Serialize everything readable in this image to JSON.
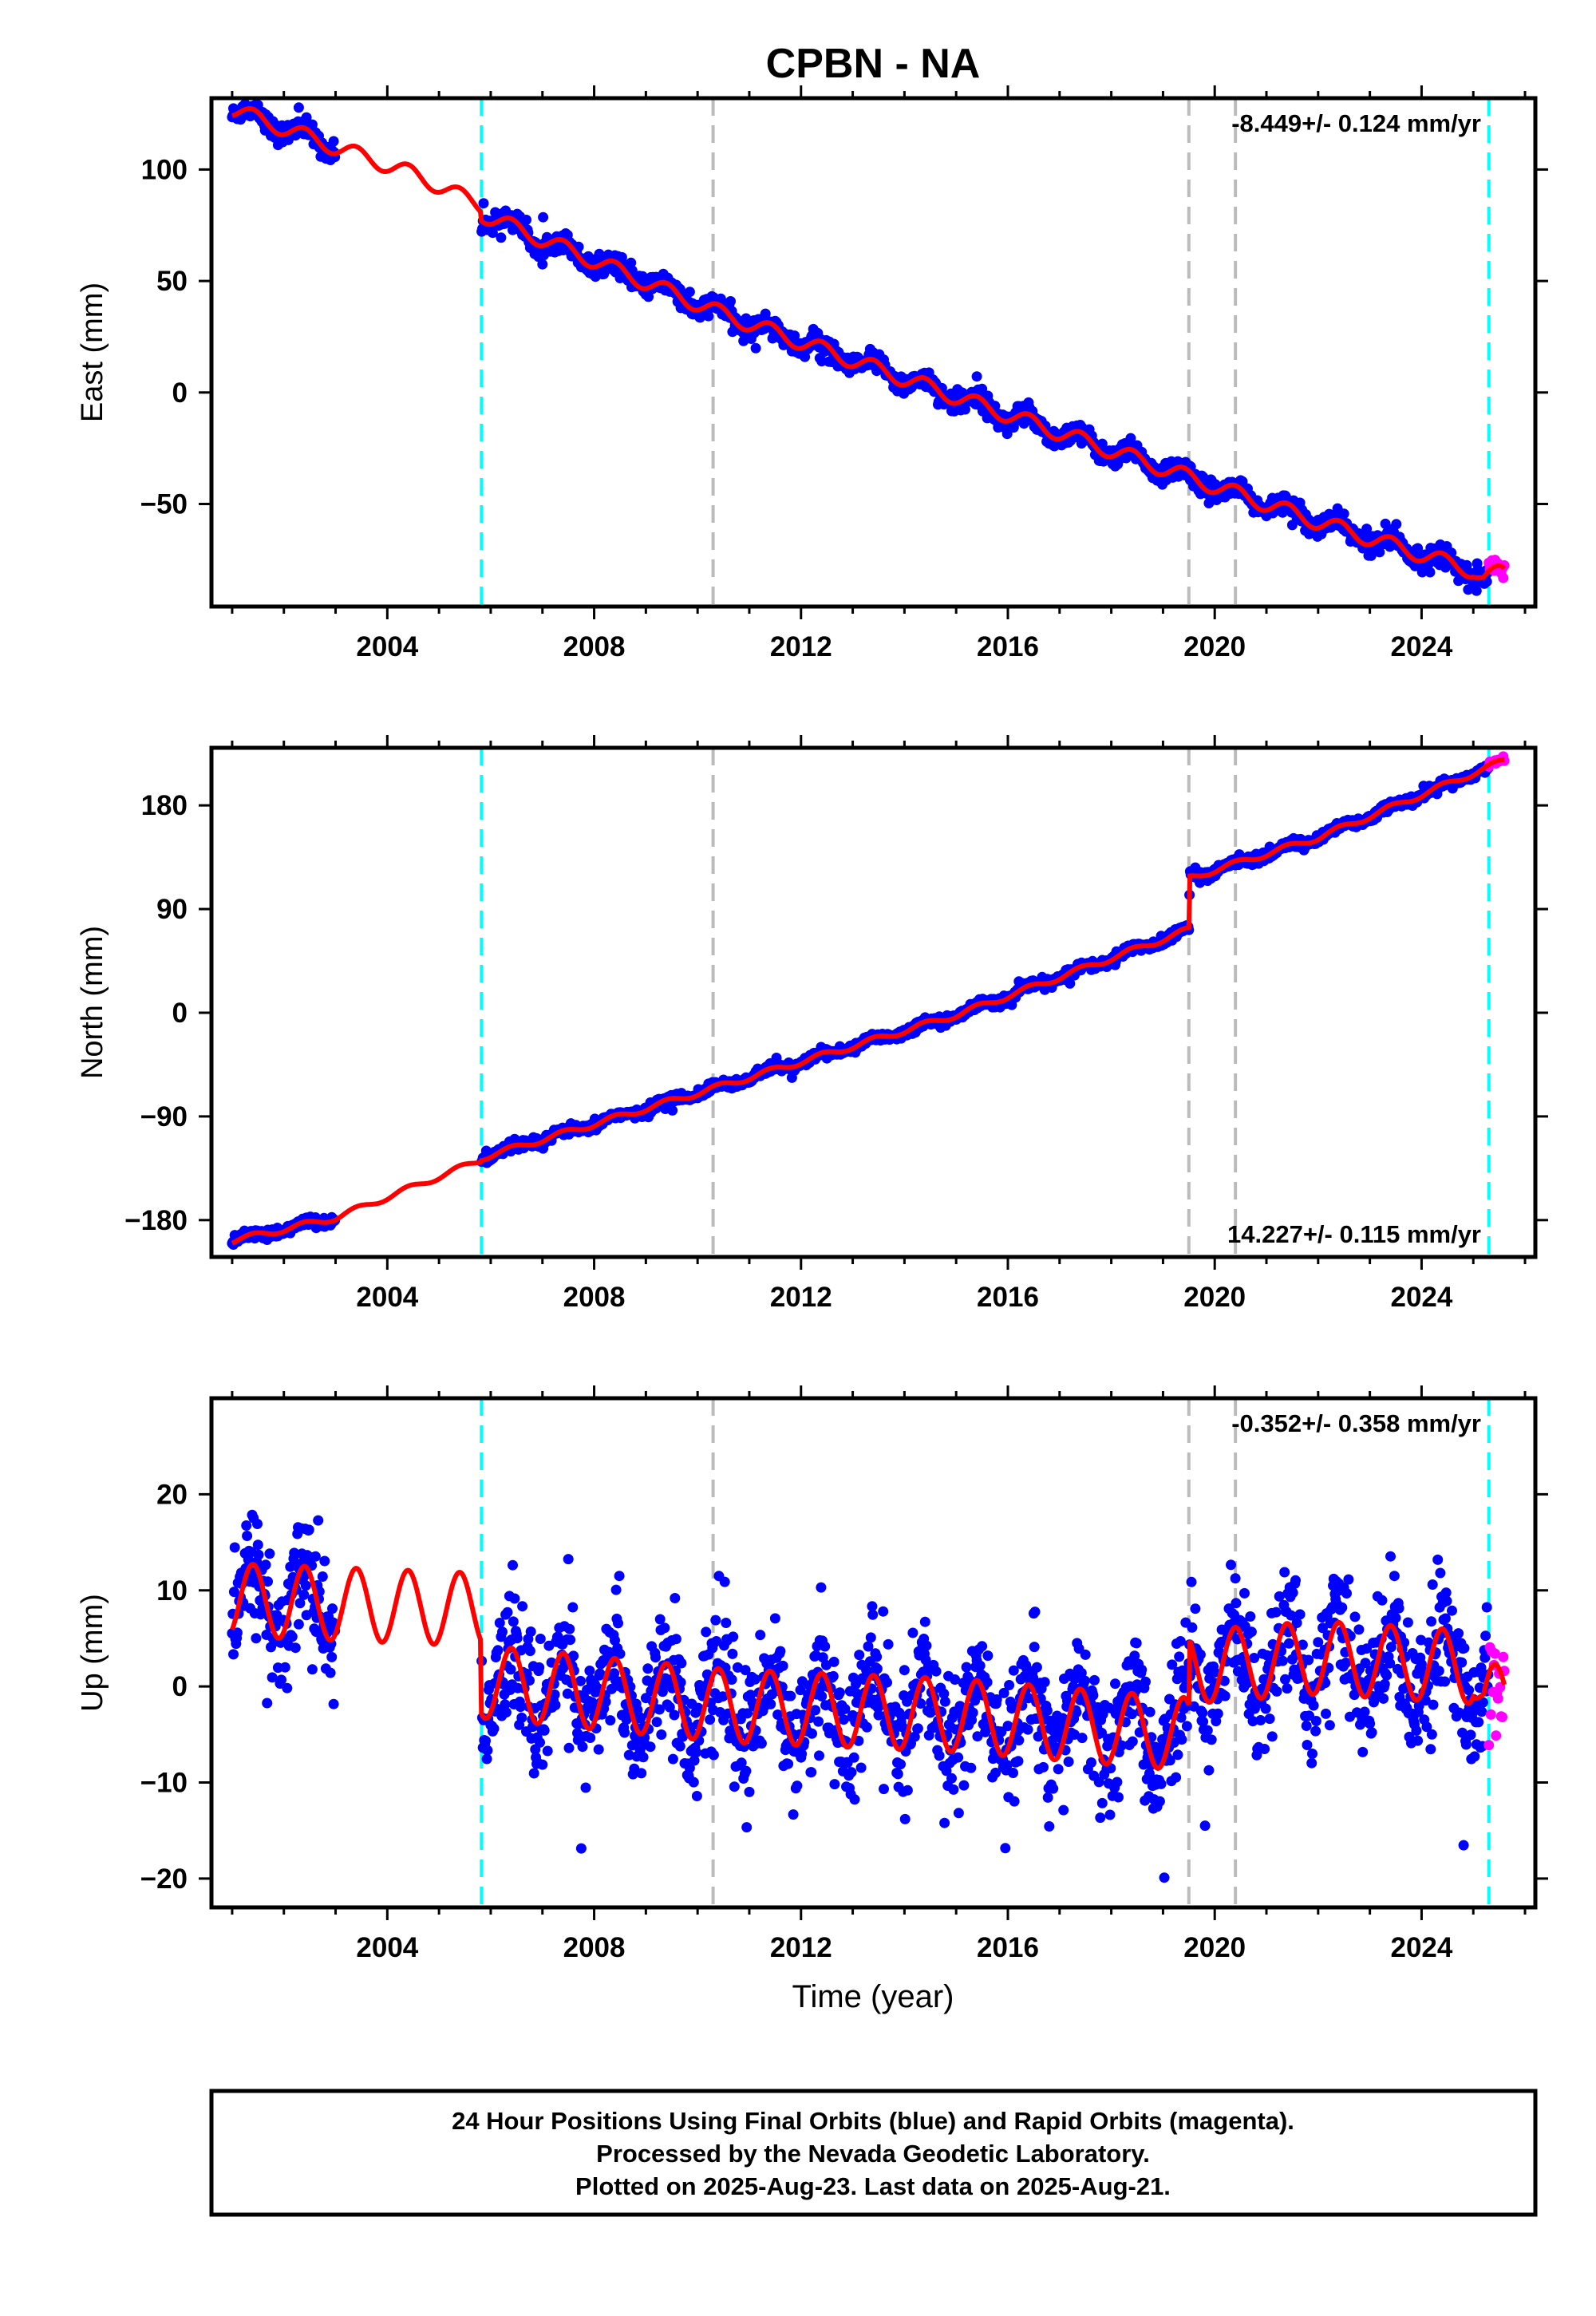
{
  "figure": {
    "title": "CPBN - NA",
    "xlabel": "Time (year)",
    "footer": [
      "24 Hour Positions Using Final Orbits (blue) and Rapid Orbits (magenta).",
      "Processed by the Nevada Geodetic Laboratory.",
      "Plotted on 2025-Aug-23. Last data on 2025-Aug-21."
    ]
  },
  "chart_data": [
    {
      "type": "scatter",
      "component": "east",
      "ylabel": "East (mm)",
      "rate_text": "-8.449+/- 0.124 mm/yr",
      "rate_position": "top-right",
      "xlim": [
        2000.6,
        2026.2
      ],
      "ylim": [
        -96,
        132
      ],
      "xticks": [
        2004,
        2008,
        2012,
        2016,
        2020,
        2024
      ],
      "yticks": [
        100,
        50,
        0,
        -50
      ],
      "ytick_labels": [
        "100",
        "50",
        "0",
        "−50"
      ],
      "model_knots": [
        [
          2001.0,
          127
        ],
        [
          2003.0,
          110
        ],
        [
          2004.5,
          98
        ],
        [
          2005.8,
          84
        ],
        [
          2005.82,
          80
        ],
        [
          2010.5,
          35
        ],
        [
          2015.0,
          -2
        ],
        [
          2019.5,
          -38
        ],
        [
          2022.0,
          -58
        ],
        [
          2025.0,
          -80
        ],
        [
          2025.2,
          -84
        ],
        [
          2025.55,
          -80
        ]
      ],
      "seasonal_amplitude": 3.5,
      "scatter_noise": 2.2,
      "data_gap": [
        2003.0,
        2005.82
      ],
      "step_epochs": [
        {
          "x": 2005.82,
          "dy": -5
        }
      ],
      "series": [
        {
          "name": "Final Orbits (blue)",
          "color": "#0000ff",
          "range": [
            2001.0,
            2025.3
          ]
        },
        {
          "name": "Rapid Orbits (magenta)",
          "color": "#ff00ff",
          "range": [
            2025.3,
            2025.6
          ]
        }
      ],
      "model_color": "#ff0000"
    },
    {
      "type": "scatter",
      "component": "north",
      "ylabel": "North (mm)",
      "rate_text": "14.227+/- 0.115 mm/yr",
      "rate_position": "bottom-right",
      "xlim": [
        2000.6,
        2026.2
      ],
      "ylim": [
        -212,
        230
      ],
      "xticks": [
        2004,
        2008,
        2012,
        2016,
        2020,
        2024
      ],
      "yticks": [
        180,
        90,
        0,
        -90,
        -180
      ],
      "ytick_labels": [
        "180",
        "90",
        "0",
        "−90",
        "−180"
      ],
      "model_knots": [
        [
          2001.0,
          -198
        ],
        [
          2003.0,
          -178
        ],
        [
          2005.8,
          -128
        ],
        [
          2005.82,
          -126
        ],
        [
          2010.5,
          -63
        ],
        [
          2015.0,
          -2
        ],
        [
          2019.5,
          72
        ],
        [
          2019.52,
          117
        ],
        [
          2022.0,
          152
        ],
        [
          2025.6,
          219
        ]
      ],
      "seasonal_amplitude": 2.5,
      "scatter_noise": 2.0,
      "data_gap": [
        2003.0,
        2005.82
      ],
      "step_epochs": [
        {
          "x": 2019.5,
          "dy": 45
        }
      ],
      "series": [
        {
          "name": "Final Orbits (blue)",
          "color": "#0000ff",
          "range": [
            2001.0,
            2025.3
          ]
        },
        {
          "name": "Rapid Orbits (magenta)",
          "color": "#ff00ff",
          "range": [
            2025.3,
            2025.6
          ]
        }
      ],
      "model_color": "#ff0000"
    },
    {
      "type": "scatter",
      "component": "up",
      "ylabel": "Up (mm)",
      "rate_text": "-0.352+/- 0.358 mm/yr",
      "rate_position": "top-right",
      "xlim": [
        2000.6,
        2026.2
      ],
      "ylim": [
        -23,
        30
      ],
      "xticks": [
        2004,
        2008,
        2012,
        2016,
        2020,
        2024
      ],
      "yticks": [
        20,
        10,
        0,
        -10,
        -20
      ],
      "ytick_labels": [
        "20",
        "10",
        "0",
        "−10",
        "−20"
      ],
      "model_knots": [
        [
          2001.0,
          9
        ],
        [
          2005.8,
          8
        ],
        [
          2005.82,
          0.5
        ],
        [
          2010.5,
          -2
        ],
        [
          2015.0,
          -3
        ],
        [
          2019.5,
          -5
        ],
        [
          2019.52,
          2
        ],
        [
          2022.0,
          3
        ],
        [
          2025.0,
          2
        ],
        [
          2025.2,
          -2
        ],
        [
          2025.6,
          -1
        ]
      ],
      "seasonal_amplitude": 3.8,
      "scatter_noise": 3.2,
      "data_gap": [
        2003.0,
        2005.82
      ],
      "step_epochs": [
        {
          "x": 2005.82,
          "dy": -7
        },
        {
          "x": 2019.5,
          "dy": 7
        }
      ],
      "series": [
        {
          "name": "Final Orbits (blue)",
          "color": "#0000ff",
          "range": [
            2001.0,
            2025.3
          ]
        },
        {
          "name": "Rapid Orbits (magenta)",
          "color": "#ff00ff",
          "range": [
            2025.3,
            2025.6
          ]
        }
      ],
      "model_color": "#ff0000"
    }
  ],
  "event_lines": [
    {
      "x": 2005.82,
      "color": "#00ffff",
      "kind": "equipment change"
    },
    {
      "x": 2010.3,
      "color": "#bbbbbb",
      "kind": "earthquake"
    },
    {
      "x": 2019.5,
      "color": "#bbbbbb",
      "kind": "earthquake"
    },
    {
      "x": 2020.4,
      "color": "#bbbbbb",
      "kind": "earthquake"
    },
    {
      "x": 2025.3,
      "color": "#00ffff",
      "kind": "equipment change"
    }
  ]
}
